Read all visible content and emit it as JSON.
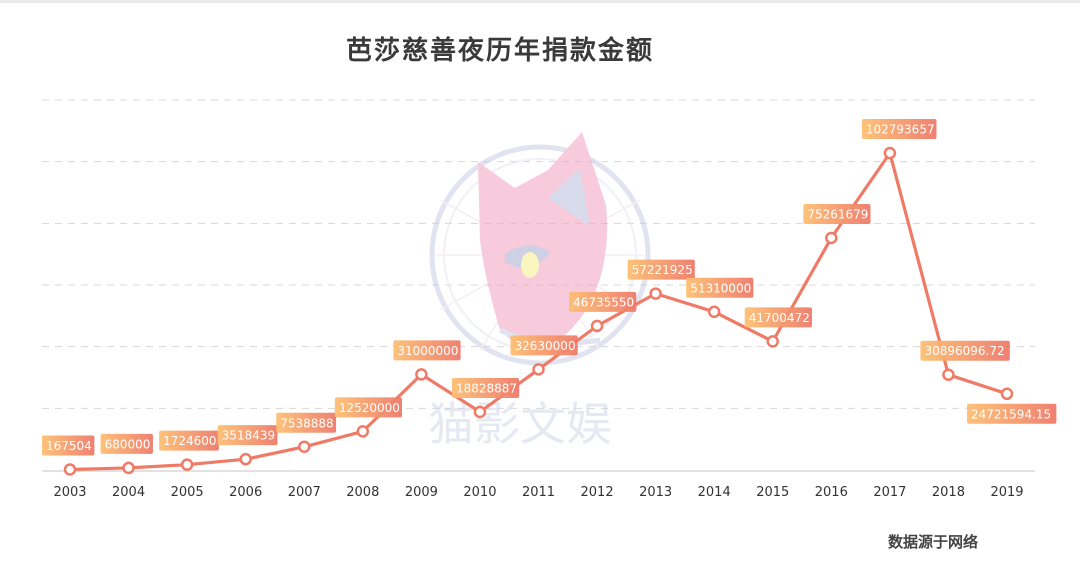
{
  "chart_data": {
    "type": "line",
    "title": "芭莎慈善夜历年捐款金额",
    "categories": [
      "2003",
      "2004",
      "2005",
      "2006",
      "2007",
      "2008",
      "2009",
      "2010",
      "2011",
      "2012",
      "2013",
      "2014",
      "2015",
      "2016",
      "2017",
      "2018",
      "2019"
    ],
    "values": [
      167504,
      680000,
      1724600,
      3518439,
      7538888,
      12520000,
      31000000,
      18828887,
      32630000,
      46735550,
      57221925,
      51310000,
      41700472,
      75261679,
      102793657,
      30896096.72,
      24721594.15
    ],
    "data_labels": [
      "167504",
      "680000",
      "1724600",
      "3518439",
      "7538888",
      "12520000",
      "31000000",
      "18828887",
      "32630000",
      "46735550",
      "57221925",
      "51310000",
      "41700472",
      "75261679",
      "102793657",
      "30896096.72",
      "24721594.15"
    ],
    "ylim": [
      0,
      120000000
    ],
    "grid": "horizontal-dashed",
    "colors": {
      "line": "#ef7b66",
      "label_start": "#fdbf72",
      "label_end": "#ee7a6a"
    }
  },
  "source_note": "数据源于网络",
  "watermark": {
    "text": "猫影文娱",
    "icon": "cat-logo-icon"
  }
}
